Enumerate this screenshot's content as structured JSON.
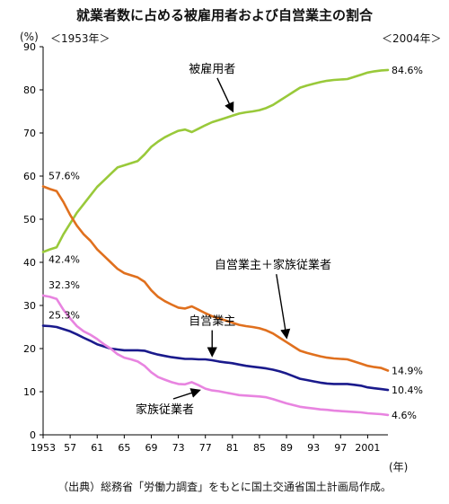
{
  "header": {
    "title": "就業者数に占める被雇用者および自営業主の割合",
    "start_label": "＜1953年＞",
    "end_label": "＜2004年＞",
    "y_unit": "(%)",
    "x_unit": "(年)"
  },
  "footer": {
    "source": "（出典）総務省「労働力調査」をもとに国土交通省国土計画局作成。"
  },
  "chart_data": {
    "type": "line",
    "xlim": [
      1953,
      2004
    ],
    "ylim": [
      0,
      90
    ],
    "yticks": [
      0,
      10,
      20,
      30,
      40,
      50,
      60,
      70,
      80,
      90
    ],
    "xticks": [
      "1953",
      "57",
      "61",
      "65",
      "69",
      "73",
      "77",
      "81",
      "85",
      "89",
      "93",
      "97",
      "2001"
    ],
    "xtick_values": [
      1953,
      1957,
      1961,
      1965,
      1969,
      1973,
      1977,
      1981,
      1985,
      1989,
      1993,
      1997,
      2001
    ],
    "grid": false,
    "series": [
      {
        "name": "被雇用者",
        "color": "#99c93a",
        "start_label": "42.4%",
        "end_label": "84.6%",
        "x": [
          1953,
          1954,
          1955,
          1956,
          1957,
          1958,
          1959,
          1960,
          1961,
          1962,
          1963,
          1964,
          1965,
          1966,
          1967,
          1968,
          1969,
          1970,
          1971,
          1972,
          1973,
          1974,
          1975,
          1976,
          1977,
          1978,
          1979,
          1980,
          1981,
          1982,
          1983,
          1984,
          1985,
          1986,
          1987,
          1988,
          1989,
          1990,
          1991,
          1992,
          1993,
          1994,
          1995,
          1996,
          1997,
          1998,
          1999,
          2000,
          2001,
          2002,
          2003,
          2004
        ],
        "values": [
          42.4,
          43.0,
          43.5,
          46.5,
          49.0,
          51.5,
          53.5,
          55.5,
          57.5,
          59.0,
          60.5,
          62.0,
          62.5,
          63.0,
          63.5,
          65.0,
          66.8,
          68.0,
          69.0,
          69.8,
          70.5,
          70.8,
          70.2,
          71.0,
          71.8,
          72.5,
          73.0,
          73.5,
          74.0,
          74.5,
          74.8,
          75.0,
          75.3,
          75.8,
          76.5,
          77.5,
          78.5,
          79.5,
          80.5,
          81.0,
          81.4,
          81.8,
          82.1,
          82.3,
          82.4,
          82.5,
          83.0,
          83.5,
          84.0,
          84.3,
          84.5,
          84.6
        ]
      },
      {
        "name": "自営業主＋家族従業者",
        "color": "#e0701e",
        "start_label": "57.6%",
        "end_label": "14.9%",
        "x": [
          1953,
          1954,
          1955,
          1956,
          1957,
          1958,
          1959,
          1960,
          1961,
          1962,
          1963,
          1964,
          1965,
          1966,
          1967,
          1968,
          1969,
          1970,
          1971,
          1972,
          1973,
          1974,
          1975,
          1976,
          1977,
          1978,
          1979,
          1980,
          1981,
          1982,
          1983,
          1984,
          1985,
          1986,
          1987,
          1988,
          1989,
          1990,
          1991,
          1992,
          1993,
          1994,
          1995,
          1996,
          1997,
          1998,
          1999,
          2000,
          2001,
          2002,
          2003,
          2004
        ],
        "values": [
          57.6,
          57.0,
          56.5,
          54.0,
          51.0,
          48.5,
          46.5,
          45.0,
          43.0,
          41.5,
          40.0,
          38.5,
          37.5,
          37.0,
          36.5,
          35.5,
          33.5,
          32.0,
          31.0,
          30.2,
          29.5,
          29.3,
          29.8,
          29.0,
          28.2,
          27.5,
          27.0,
          26.5,
          26.0,
          25.5,
          25.2,
          25.0,
          24.7,
          24.2,
          23.5,
          22.5,
          21.5,
          20.5,
          19.5,
          19.0,
          18.6,
          18.2,
          17.9,
          17.7,
          17.6,
          17.5,
          17.0,
          16.5,
          16.0,
          15.7,
          15.5,
          14.9
        ]
      },
      {
        "name": "自営業主",
        "color": "#1a1a8c",
        "start_label": "25.3%",
        "end_label": "10.4%",
        "x": [
          1953,
          1954,
          1955,
          1956,
          1957,
          1958,
          1959,
          1960,
          1961,
          1962,
          1963,
          1964,
          1965,
          1966,
          1967,
          1968,
          1969,
          1970,
          1971,
          1972,
          1973,
          1974,
          1975,
          1976,
          1977,
          1978,
          1979,
          1980,
          1981,
          1982,
          1983,
          1984,
          1985,
          1986,
          1987,
          1988,
          1989,
          1990,
          1991,
          1992,
          1993,
          1994,
          1995,
          1996,
          1997,
          1998,
          1999,
          2000,
          2001,
          2002,
          2003,
          2004
        ],
        "values": [
          25.3,
          25.2,
          25.0,
          24.5,
          24.0,
          23.3,
          22.5,
          21.8,
          21.0,
          20.5,
          20.0,
          19.8,
          19.6,
          19.6,
          19.6,
          19.5,
          19.0,
          18.6,
          18.3,
          18.0,
          17.8,
          17.6,
          17.6,
          17.5,
          17.5,
          17.3,
          17.0,
          16.8,
          16.6,
          16.3,
          16.0,
          15.8,
          15.6,
          15.4,
          15.1,
          14.7,
          14.2,
          13.6,
          13.0,
          12.7,
          12.4,
          12.1,
          11.9,
          11.8,
          11.8,
          11.8,
          11.6,
          11.4,
          11.0,
          10.8,
          10.6,
          10.4
        ]
      },
      {
        "name": "家族従業者",
        "color": "#e884e0",
        "start_label": "32.3%",
        "end_label": "4.6%",
        "x": [
          1953,
          1954,
          1955,
          1956,
          1957,
          1958,
          1959,
          1960,
          1961,
          1962,
          1963,
          1964,
          1965,
          1966,
          1967,
          1968,
          1969,
          1970,
          1971,
          1972,
          1973,
          1974,
          1975,
          1976,
          1977,
          1978,
          1979,
          1980,
          1981,
          1982,
          1983,
          1984,
          1985,
          1986,
          1987,
          1988,
          1989,
          1990,
          1991,
          1992,
          1993,
          1994,
          1995,
          1996,
          1997,
          1998,
          1999,
          2000,
          2001,
          2002,
          2003,
          2004
        ],
        "values": [
          32.3,
          32.0,
          31.5,
          29.0,
          27.0,
          25.2,
          24.0,
          23.2,
          22.2,
          21.0,
          20.0,
          18.7,
          17.9,
          17.5,
          17.0,
          16.0,
          14.5,
          13.4,
          12.8,
          12.2,
          11.8,
          11.7,
          12.2,
          11.5,
          10.7,
          10.3,
          10.1,
          9.8,
          9.5,
          9.2,
          9.1,
          9.0,
          8.9,
          8.7,
          8.3,
          7.8,
          7.3,
          6.9,
          6.5,
          6.3,
          6.1,
          5.9,
          5.8,
          5.6,
          5.5,
          5.4,
          5.3,
          5.2,
          5.0,
          4.9,
          4.8,
          4.6
        ]
      }
    ],
    "annotations": [
      {
        "text": "被雇用者",
        "series": 0,
        "x": 1981,
        "label_x": 1978,
        "label_y": 84
      },
      {
        "text": "自営業主＋家族従業者",
        "series": 1,
        "x": 1989,
        "label_x": 1987,
        "label_y": 38.5
      },
      {
        "text": "自営業主",
        "series": 2,
        "x": 1978,
        "label_x": 1978,
        "label_y": 25.5
      },
      {
        "text": "家族従業者",
        "series": 3,
        "x": 1976,
        "label_x": 1971,
        "label_y": 5
      }
    ]
  }
}
